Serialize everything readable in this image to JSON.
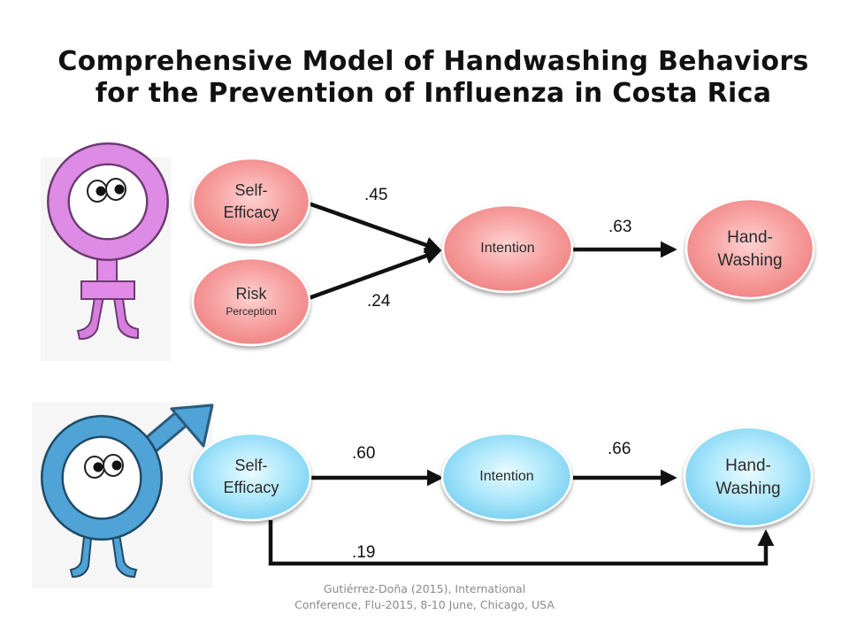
{
  "title": {
    "line1": "Comprehensive Model of Handwashing Behaviors",
    "line2": "for the Prevention of Influenza in Costa Rica"
  },
  "colors": {
    "female_node": "#f48a8a",
    "male_node": "#7fd3f2",
    "female_icon": "#d980e0",
    "male_icon": "#4fa3d6",
    "arrow": "#111111"
  },
  "icons": {
    "female": "female-symbol-character-icon",
    "male": "male-symbol-character-icon"
  },
  "female_model": {
    "self_efficacy": {
      "line1": "Self-",
      "line2": "Efficacy"
    },
    "risk_perception": {
      "line1": "Risk",
      "line2": "Perception"
    },
    "intention": {
      "label": "Intention"
    },
    "handwashing": {
      "line1": "Hand-",
      "line2": "Washing"
    },
    "coef_self_efficacy": ".45",
    "coef_risk": ".24",
    "coef_intention": ".63"
  },
  "male_model": {
    "self_efficacy": {
      "line1": "Self-",
      "line2": "Efficacy"
    },
    "intention": {
      "label": "Intention"
    },
    "handwashing": {
      "line1": "Hand-",
      "line2": "Washing"
    },
    "coef_self_efficacy": ".60",
    "coef_intention": ".66",
    "coef_direct": ".19"
  },
  "caption": "Gutiérrez-Doña (2015), International Conference, Flu-2015, 8-10 June, Chicago, USA"
}
